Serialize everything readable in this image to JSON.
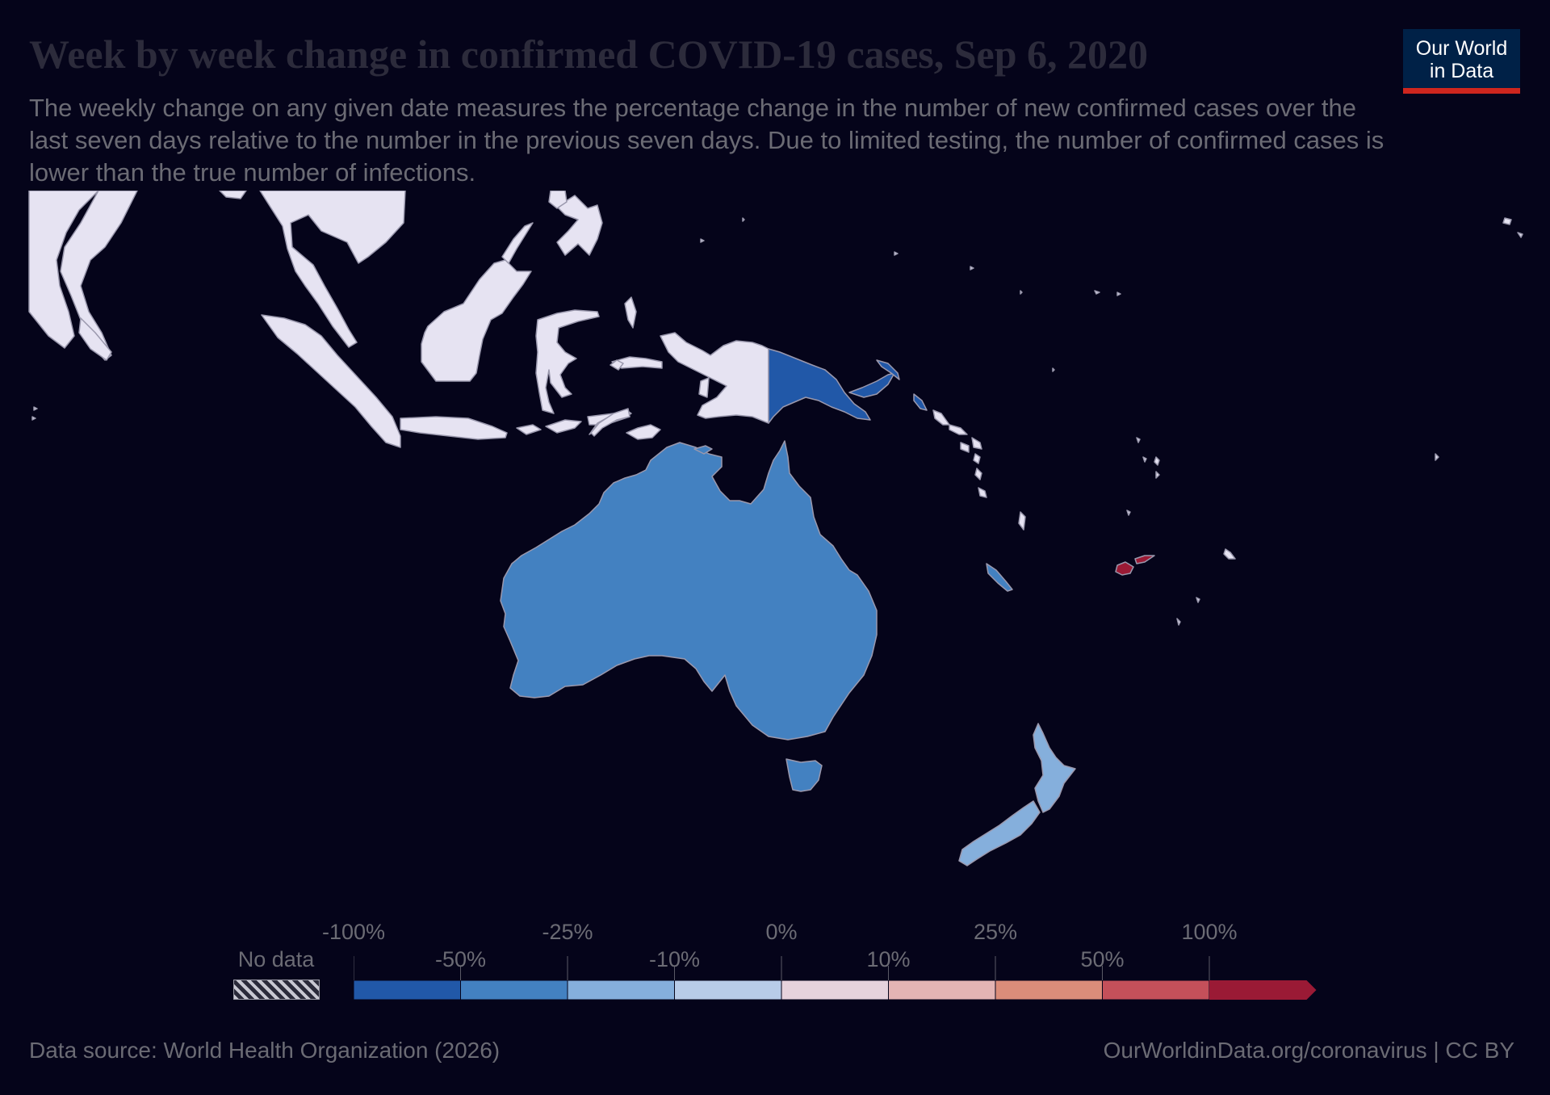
{
  "header": {
    "title": "Week by week change in confirmed COVID-19 cases, Sep 6, 2020",
    "subtitle": "The weekly change on any given date measures the percentage change in the number of new confirmed cases over the last seven days relative to the number in the previous seven days. Due to limited testing, the number of confirmed cases is lower than the true number of infections."
  },
  "logo": {
    "line1": "Our World",
    "line2": "in Data"
  },
  "colors": {
    "no_data_land": "#e6e3f2",
    "background": "#05041a",
    "fiji": "#9a1a35",
    "papua_new_guinea": "#2158a8",
    "australia": "#4381c1",
    "new_zealand": "#85afdc",
    "new_caledonia": "#4381c1"
  },
  "legend": {
    "no_data_label": "No data",
    "top_labels": [
      "-100%",
      "-25%",
      "0%",
      "25%",
      "100%"
    ],
    "bottom_labels": [
      "-50%",
      "-10%",
      "10%",
      "50%"
    ],
    "bins": [
      {
        "range": "-100% to -50%",
        "color": "#2158a8"
      },
      {
        "range": "-50% to -25%",
        "color": "#4381c1"
      },
      {
        "range": "-25% to -10%",
        "color": "#85afdc"
      },
      {
        "range": "-10% to 0%",
        "color": "#b8cce8"
      },
      {
        "range": "0% to 10%",
        "color": "#e6d3dc"
      },
      {
        "range": "10% to 25%",
        "color": "#e3b4b4"
      },
      {
        "range": "25% to 50%",
        "color": "#db8d7a"
      },
      {
        "range": "50% to 100%",
        "color": "#c4505a"
      },
      {
        "range": "over 100%",
        "color": "#9a1a35"
      }
    ]
  },
  "countries": [
    {
      "name": "Australia",
      "bin": "-50% to -25%"
    },
    {
      "name": "Papua New Guinea",
      "bin": "-100% to -50%"
    },
    {
      "name": "New Zealand",
      "bin": "-25% to -10%"
    },
    {
      "name": "New Caledonia",
      "bin": "-50% to -25%"
    },
    {
      "name": "Fiji",
      "bin": "over 100%"
    }
  ],
  "footer": {
    "source": "Data source: World Health Organization (2026)",
    "credit": "OurWorldinData.org/coronavirus | CC BY"
  }
}
